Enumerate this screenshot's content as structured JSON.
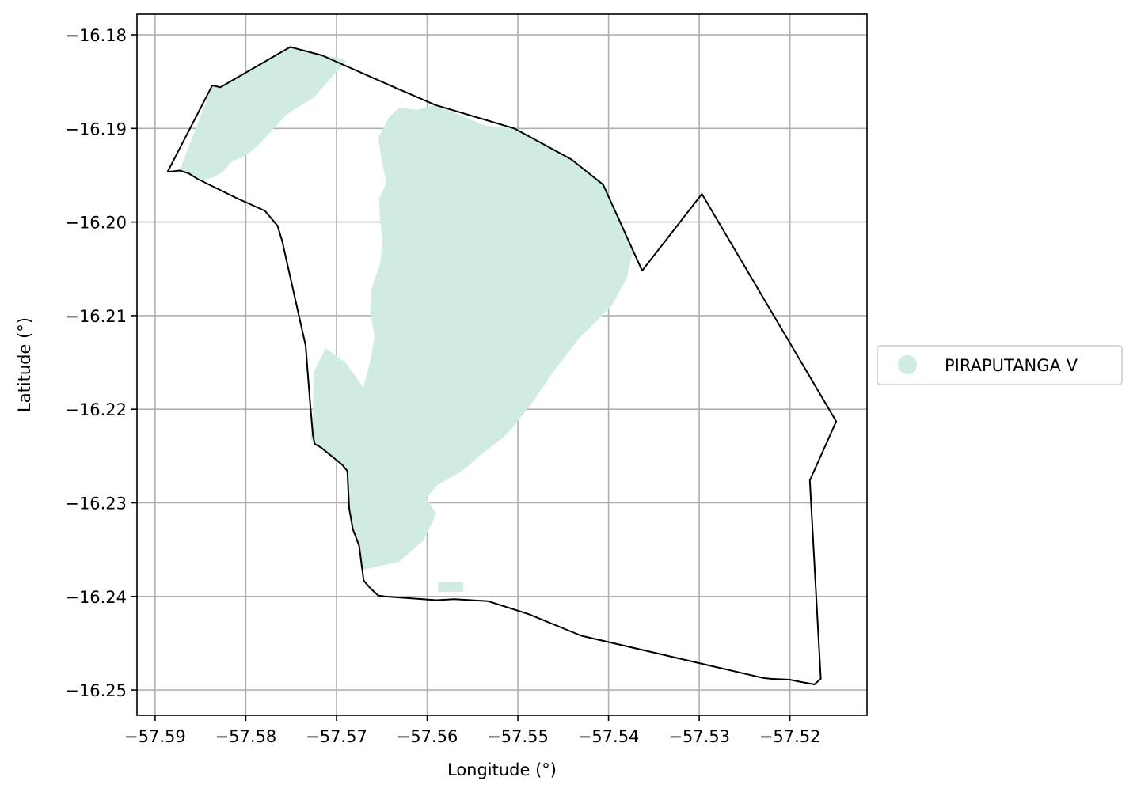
{
  "chart_data": {
    "type": "map",
    "xlabel": "Longitude (°)",
    "ylabel": "Latitude (°)",
    "xlim": [
      -57.592,
      -57.5115
    ],
    "ylim": [
      -16.2527,
      -16.1778
    ],
    "grid": true,
    "x_ticks": [
      -57.59,
      -57.58,
      -57.57,
      -57.56,
      -57.55,
      -57.54,
      -57.53,
      -57.52
    ],
    "x_tick_labels": [
      "−57.59",
      "−57.58",
      "−57.57",
      "−57.56",
      "−57.55",
      "−57.54",
      "−57.53",
      "−57.52"
    ],
    "y_ticks": [
      -16.18,
      -16.19,
      -16.2,
      -16.21,
      -16.22,
      -16.23,
      -16.24,
      -16.25
    ],
    "y_tick_labels": [
      "−16.18",
      "−16.19",
      "−16.20",
      "−16.21",
      "−16.22",
      "−16.23",
      "−16.24",
      "−16.25"
    ],
    "legend": {
      "placement": "right",
      "entries": [
        {
          "label": "PIRAPUTANGA V",
          "color": "#d0ece0"
        }
      ]
    },
    "colors": {
      "fill": "#d0ece0",
      "outline": "#000000",
      "grid": "#b0b0b0"
    },
    "boundary": [
      [
        -57.5882,
        -16.1946
      ],
      [
        -57.5873,
        -16.1945
      ],
      [
        -57.5863,
        -16.1948
      ],
      [
        -57.5853,
        -16.1954
      ],
      [
        -57.5811,
        -16.1974
      ],
      [
        -57.5779,
        -16.1988
      ],
      [
        -57.5765,
        -16.2004
      ],
      [
        -57.576,
        -16.202
      ],
      [
        -57.5734,
        -16.2132
      ],
      [
        -57.5729,
        -16.2195
      ],
      [
        -57.5726,
        -16.2228
      ],
      [
        -57.5724,
        -16.2237
      ],
      [
        -57.5717,
        -16.2241
      ],
      [
        -57.5694,
        -16.2259
      ],
      [
        -57.5688,
        -16.2266
      ],
      [
        -57.5686,
        -16.2306
      ],
      [
        -57.5682,
        -16.2328
      ],
      [
        -57.5675,
        -16.2346
      ],
      [
        -57.567,
        -16.2383
      ],
      [
        -57.5663,
        -16.2391
      ],
      [
        -57.5654,
        -16.2399
      ],
      [
        -57.5647,
        -16.24
      ],
      [
        -57.559,
        -16.2404
      ],
      [
        -57.557,
        -16.2403
      ],
      [
        -57.5533,
        -16.2405
      ],
      [
        -57.5488,
        -16.2419
      ],
      [
        -57.543,
        -16.2442
      ],
      [
        -57.523,
        -16.2487
      ],
      [
        -57.5221,
        -16.2488
      ],
      [
        -57.52,
        -16.2489
      ],
      [
        -57.519,
        -16.2491
      ],
      [
        -57.5173,
        -16.2494
      ],
      [
        -57.5166,
        -16.2488
      ],
      [
        -57.5178,
        -16.2276
      ],
      [
        -57.5149,
        -16.2213
      ],
      [
        -57.5297,
        -16.197
      ],
      [
        -57.5363,
        -16.2052
      ],
      [
        -57.5406,
        -16.196
      ],
      [
        -57.5441,
        -16.1933
      ],
      [
        -57.5504,
        -16.19
      ],
      [
        -57.5591,
        -16.1875
      ],
      [
        -57.5634,
        -16.1857
      ],
      [
        -57.5716,
        -16.1822
      ],
      [
        -57.5751,
        -16.1813
      ],
      [
        -57.5828,
        -16.1856
      ],
      [
        -57.5837,
        -16.1854
      ],
      [
        -57.5886,
        -16.1946
      ]
    ],
    "fill_polygons": [
      [
        [
          -57.5873,
          -16.1945
        ],
        [
          -57.5847,
          -16.1955
        ],
        [
          -57.5835,
          -16.1952
        ],
        [
          -57.5825,
          -16.1946
        ],
        [
          -57.5815,
          -16.1935
        ],
        [
          -57.58,
          -16.1929
        ],
        [
          -57.5787,
          -16.1919
        ],
        [
          -57.5773,
          -16.1904
        ],
        [
          -57.5755,
          -16.1885
        ],
        [
          -57.5725,
          -16.1867
        ],
        [
          -57.5705,
          -16.1845
        ],
        [
          -57.5689,
          -16.1828
        ],
        [
          -57.57,
          -16.1824
        ],
        [
          -57.5716,
          -16.1822
        ],
        [
          -57.5751,
          -16.1813
        ],
        [
          -57.5828,
          -16.1856
        ],
        [
          -57.5837,
          -16.1854
        ]
      ],
      [
        [
          -57.5653,
          -16.1975
        ],
        [
          -57.5645,
          -16.1958
        ],
        [
          -57.5651,
          -16.193
        ],
        [
          -57.5654,
          -16.191
        ],
        [
          -57.5642,
          -16.1888
        ],
        [
          -57.5631,
          -16.1878
        ],
        [
          -57.5611,
          -16.188
        ],
        [
          -57.5591,
          -16.1875
        ],
        [
          -57.5565,
          -16.1885
        ],
        [
          -57.5536,
          -16.1897
        ],
        [
          -57.5504,
          -16.19
        ],
        [
          -57.547,
          -16.1918
        ],
        [
          -57.5441,
          -16.1933
        ],
        [
          -57.5406,
          -16.196
        ],
        [
          -57.5388,
          -16.1995
        ],
        [
          -57.5373,
          -16.203
        ],
        [
          -57.538,
          -16.206
        ],
        [
          -57.5397,
          -16.209
        ],
        [
          -57.5433,
          -16.2125
        ],
        [
          -57.5461,
          -16.216
        ],
        [
          -57.5482,
          -16.219
        ],
        [
          -57.5506,
          -16.222
        ],
        [
          -57.5516,
          -16.223
        ],
        [
          -57.554,
          -16.2248
        ],
        [
          -57.556,
          -16.2265
        ],
        [
          -57.559,
          -16.2282
        ],
        [
          -57.561,
          -16.2305
        ],
        [
          -57.5625,
          -16.2325
        ],
        [
          -57.5643,
          -16.2335
        ],
        [
          -57.5648,
          -16.2308
        ],
        [
          -57.5652,
          -16.2275
        ],
        [
          -57.566,
          -16.225
        ],
        [
          -57.5668,
          -16.222
        ],
        [
          -57.5672,
          -16.22
        ],
        [
          -57.567,
          -16.2175
        ],
        [
          -57.5663,
          -16.215
        ],
        [
          -57.5658,
          -16.2122
        ],
        [
          -57.5663,
          -16.2095
        ],
        [
          -57.5661,
          -16.207
        ],
        [
          -57.5652,
          -16.2045
        ],
        [
          -57.5649,
          -16.202
        ],
        [
          -57.5652,
          -16.1998
        ]
      ],
      [
        [
          -57.5712,
          -16.2135
        ],
        [
          -57.5725,
          -16.216
        ],
        [
          -57.5726,
          -16.2205
        ],
        [
          -57.5729,
          -16.2232
        ],
        [
          -57.5717,
          -16.2241
        ],
        [
          -57.5694,
          -16.2259
        ],
        [
          -57.5688,
          -16.2266
        ],
        [
          -57.5686,
          -16.2306
        ],
        [
          -57.5682,
          -16.2328
        ],
        [
          -57.5675,
          -16.2346
        ],
        [
          -57.5673,
          -16.2372
        ],
        [
          -57.5631,
          -16.2363
        ],
        [
          -57.5604,
          -16.234
        ],
        [
          -57.559,
          -16.2312
        ],
        [
          -57.5614,
          -16.2273
        ],
        [
          -57.5629,
          -16.223
        ],
        [
          -57.5648,
          -16.221
        ],
        [
          -57.5668,
          -16.218
        ],
        [
          -57.569,
          -16.215
        ]
      ],
      [
        [
          -57.5588,
          -16.2385
        ],
        [
          -57.556,
          -16.2385
        ],
        [
          -57.556,
          -16.2395
        ],
        [
          -57.5588,
          -16.2395
        ]
      ]
    ]
  }
}
